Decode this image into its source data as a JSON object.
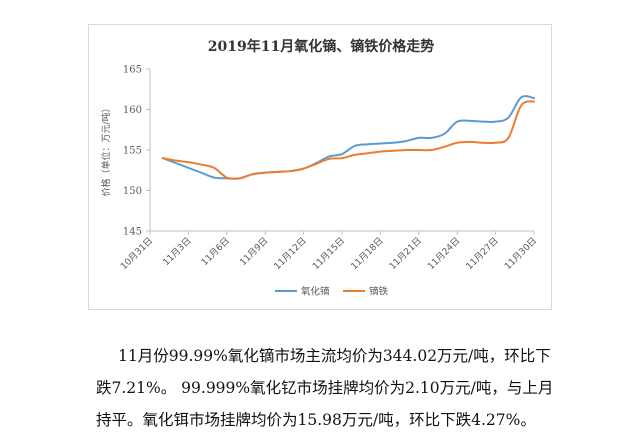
{
  "chart_data": {
    "type": "line",
    "title": "2019年11月氧化镝、镝铁价格走势",
    "ylabel": "价格（单位：万元/吨）",
    "xlabel": "",
    "ylim": [
      145,
      165
    ],
    "yticks": [
      145,
      150,
      155,
      160,
      165
    ],
    "x_ticks": [
      "10月31日",
      "11月3日",
      "11月6日",
      "11月9日",
      "11月12日",
      "11月15日",
      "11月18日",
      "11月21日",
      "11月24日",
      "11月27日",
      "11月30日"
    ],
    "legend_position": "bottom",
    "grid": false,
    "series": [
      {
        "name": "氧化镝",
        "color": "#5b9bd5",
        "points": [
          [
            1,
            154
          ],
          [
            2,
            153.4
          ],
          [
            3,
            152.8
          ],
          [
            4,
            152.2
          ],
          [
            5,
            151.6
          ],
          [
            6,
            151.5
          ],
          [
            7,
            151.5
          ],
          [
            8,
            152
          ],
          [
            9,
            152.2
          ],
          [
            10,
            152.3
          ],
          [
            11,
            152.4
          ],
          [
            12,
            152.7
          ],
          [
            13,
            153.4
          ],
          [
            14,
            154.2
          ],
          [
            15,
            154.5
          ],
          [
            16,
            155.5
          ],
          [
            17,
            155.7
          ],
          [
            18,
            155.8
          ],
          [
            19,
            155.9
          ],
          [
            20,
            156.1
          ],
          [
            21,
            156.5
          ],
          [
            22,
            156.5
          ],
          [
            23,
            157
          ],
          [
            24,
            158.5
          ],
          [
            25,
            158.6
          ],
          [
            26,
            158.5
          ],
          [
            27,
            158.5
          ],
          [
            28,
            159
          ],
          [
            29,
            161.5
          ],
          [
            30,
            161.4
          ]
        ]
      },
      {
        "name": "镝铁",
        "color": "#ed7d31",
        "points": [
          [
            1,
            154
          ],
          [
            2,
            153.7
          ],
          [
            3,
            153.5
          ],
          [
            4,
            153.2
          ],
          [
            5,
            152.8
          ],
          [
            6,
            151.6
          ],
          [
            7,
            151.5
          ],
          [
            8,
            152
          ],
          [
            9,
            152.2
          ],
          [
            10,
            152.3
          ],
          [
            11,
            152.4
          ],
          [
            12,
            152.7
          ],
          [
            13,
            153.3
          ],
          [
            14,
            153.9
          ],
          [
            15,
            154.0
          ],
          [
            16,
            154.4
          ],
          [
            17,
            154.6
          ],
          [
            18,
            154.8
          ],
          [
            19,
            154.9
          ],
          [
            20,
            155.0
          ],
          [
            21,
            155.0
          ],
          [
            22,
            155.0
          ],
          [
            23,
            155.4
          ],
          [
            24,
            155.9
          ],
          [
            25,
            156.0
          ],
          [
            26,
            155.9
          ],
          [
            27,
            155.9
          ],
          [
            28,
            156.5
          ],
          [
            29,
            160.5
          ],
          [
            30,
            161
          ]
        ]
      }
    ]
  },
  "text": {
    "line1": "11月份99.99%氧化镝市场主流均价为344.02万元/吨，环比下",
    "line2": "跌7.21%。 99.999%氧化钇市场挂牌均价为2.10万元/吨，与上月",
    "line3": "持平。氧化铒市场挂牌均价为15.98万元/吨，环比下跌4.27%。"
  }
}
